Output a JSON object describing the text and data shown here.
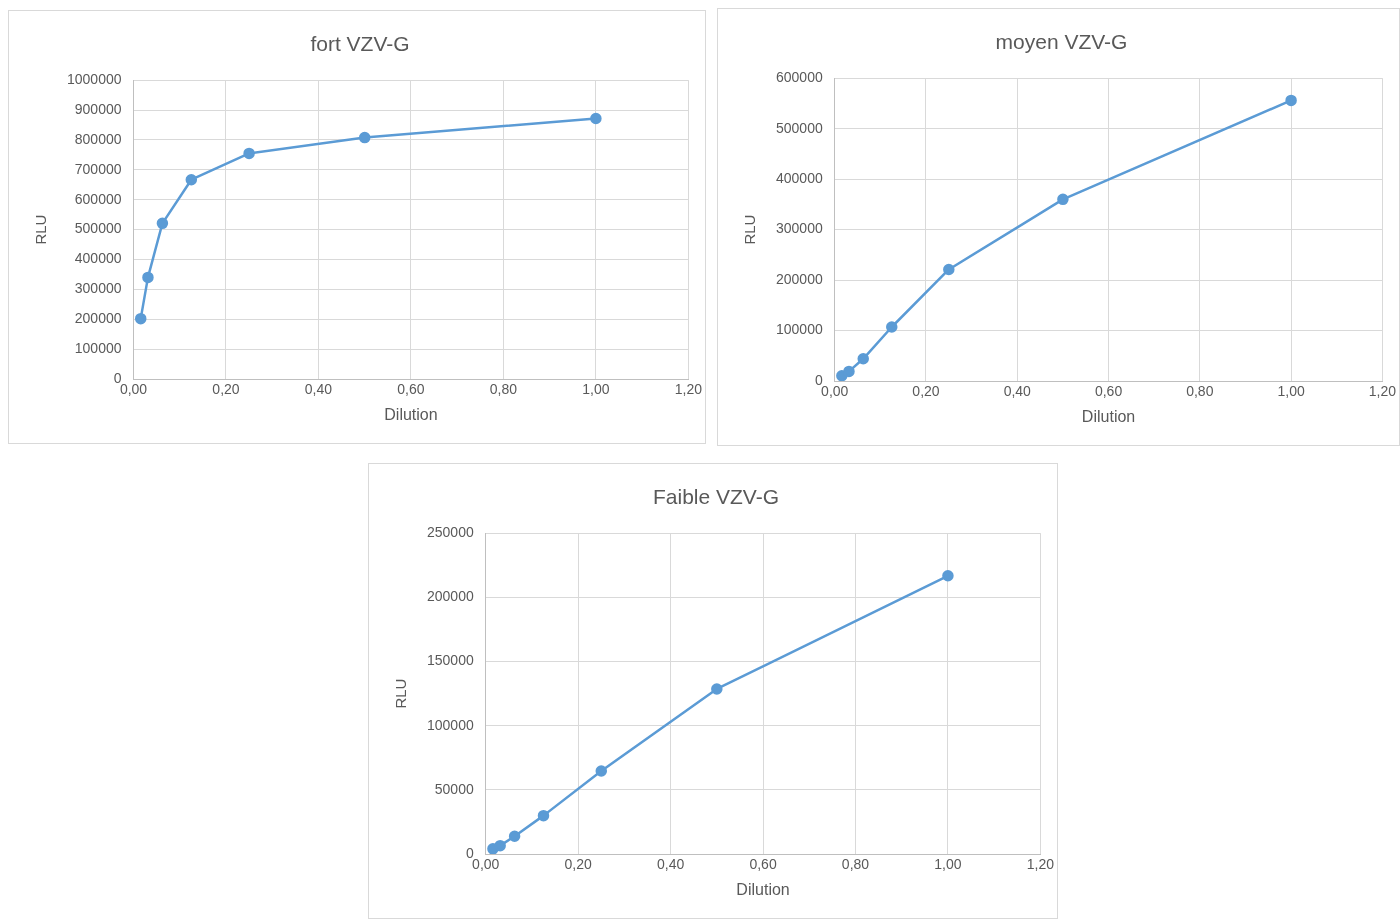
{
  "chart_data": [
    {
      "type": "line",
      "title": "fort VZV-G",
      "xlabel": "Dilution",
      "ylabel": "RLU",
      "x": [
        0.015625,
        0.03125,
        0.0625,
        0.125,
        0.25,
        0.5,
        1
      ],
      "series": [
        {
          "color": "#5b9bd5",
          "values": [
            202000,
            340000,
            521000,
            667000,
            755000,
            808000,
            872000
          ]
        }
      ],
      "xlim": [
        0,
        1.2
      ],
      "xticks": [
        {
          "value": 0,
          "label": "0,00"
        },
        {
          "value": 0.2,
          "label": "0,20"
        },
        {
          "value": 0.4,
          "label": "0,40"
        },
        {
          "value": 0.6,
          "label": "0,60"
        },
        {
          "value": 0.8,
          "label": "0,80"
        },
        {
          "value": 1,
          "label": "1,00"
        },
        {
          "value": 1.2,
          "label": "1,20"
        }
      ],
      "ylim": [
        0,
        1000000
      ],
      "yticks": [
        0,
        100000,
        200000,
        300000,
        400000,
        500000,
        600000,
        700000,
        800000,
        900000,
        1000000
      ],
      "grid": true,
      "marker": "circle",
      "line_style": "solid"
    },
    {
      "type": "line",
      "title": "moyen VZV-G",
      "xlabel": "Dilution",
      "ylabel": "RLU",
      "x": [
        0.015625,
        0.03125,
        0.0625,
        0.125,
        0.25,
        0.5,
        1
      ],
      "series": [
        {
          "color": "#5b9bd5",
          "values": [
            10500,
            19000,
            44000,
            107000,
            221000,
            360000,
            556000
          ]
        }
      ],
      "xlim": [
        0,
        1.2
      ],
      "xticks": [
        {
          "value": 0,
          "label": "0,00"
        },
        {
          "value": 0.2,
          "label": "0,20"
        },
        {
          "value": 0.4,
          "label": "0,40"
        },
        {
          "value": 0.6,
          "label": "0,60"
        },
        {
          "value": 0.8,
          "label": "0,80"
        },
        {
          "value": 1,
          "label": "1,00"
        },
        {
          "value": 1.2,
          "label": "1,20"
        }
      ],
      "ylim": [
        0,
        600000
      ],
      "yticks": [
        0,
        100000,
        200000,
        300000,
        400000,
        500000,
        600000
      ],
      "grid": true,
      "marker": "circle",
      "line_style": "solid"
    },
    {
      "type": "line",
      "title": "Faible VZV-G",
      "xlabel": "Dilution",
      "ylabel": "RLU",
      "x": [
        0.015625,
        0.03125,
        0.0625,
        0.125,
        0.25,
        0.5,
        1
      ],
      "series": [
        {
          "color": "#5b9bd5",
          "values": [
            4000,
            6500,
            13800,
            29900,
            64700,
            128600,
            216800
          ]
        }
      ],
      "xlim": [
        0,
        1.2
      ],
      "xticks": [
        {
          "value": 0,
          "label": "0,00"
        },
        {
          "value": 0.2,
          "label": "0,20"
        },
        {
          "value": 0.4,
          "label": "0,40"
        },
        {
          "value": 0.6,
          "label": "0,60"
        },
        {
          "value": 0.8,
          "label": "0,80"
        },
        {
          "value": 1,
          "label": "1,00"
        },
        {
          "value": 1.2,
          "label": "1,20"
        }
      ],
      "ylim": [
        0,
        250000
      ],
      "yticks": [
        0,
        50000,
        100000,
        150000,
        200000,
        250000
      ],
      "grid": true,
      "marker": "circle",
      "line_style": "solid"
    }
  ]
}
